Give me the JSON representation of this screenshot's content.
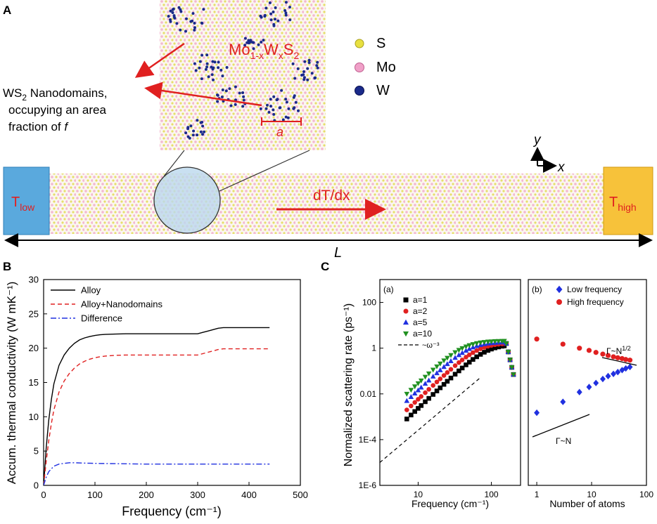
{
  "panels": {
    "A": "A",
    "B": "B",
    "C": "C"
  },
  "panel_a": {
    "material_main": "Mo",
    "material_sub1": "1-x",
    "material_w": "W",
    "material_sub2": "x",
    "material_s": "S",
    "material_sub3": "2",
    "nanodomain_line1_pre": "WS",
    "nanodomain_line1_sub": "2",
    "nanodomain_line1_post": " Nanodomains,",
    "nanodomain_line2": "occupying an area",
    "nanodomain_line3_pre": "fraction of ",
    "nanodomain_line3_var": "f",
    "domain_size": "a",
    "legend": [
      {
        "label": "S",
        "color": "#e8e040"
      },
      {
        "label": "Mo",
        "color": "#f0a0c8"
      },
      {
        "label": "W",
        "color": "#1a2a8a"
      }
    ],
    "axis_y": "y",
    "axis_x": "x",
    "t_low_main": "T",
    "t_low_sub": "low",
    "t_high_main": "T",
    "t_high_sub": "high",
    "gradient": "dT/dx",
    "length": "L",
    "colors": {
      "cold": "#5aa9dd",
      "hot": "#f7c23a",
      "arrow": "#e02020"
    }
  },
  "chart_data": [
    {
      "type": "line",
      "title": "",
      "xlabel": "Frequency (cm⁻¹)",
      "ylabel": "Accum. thermal conductivity (W mK⁻¹)",
      "xlim": [
        0,
        500
      ],
      "ylim": [
        0,
        30
      ],
      "xticks": [
        0,
        100,
        200,
        300,
        400,
        500
      ],
      "yticks": [
        0,
        5,
        10,
        15,
        20,
        25,
        30
      ],
      "series": [
        {
          "name": "Alloy",
          "color": "#000000",
          "dash": "",
          "x": [
            0,
            5,
            10,
            15,
            20,
            30,
            40,
            50,
            60,
            70,
            80,
            90,
            100,
            110,
            120,
            140,
            160,
            200,
            250,
            300,
            310,
            320,
            330,
            340,
            350,
            400,
            440
          ],
          "y": [
            0,
            5.5,
            9.5,
            12.5,
            14.8,
            17.5,
            19.0,
            20.0,
            20.7,
            21.2,
            21.5,
            21.7,
            21.85,
            21.95,
            22.0,
            22.05,
            22.1,
            22.1,
            22.1,
            22.1,
            22.3,
            22.5,
            22.7,
            22.9,
            23.0,
            23.0,
            23.0
          ]
        },
        {
          "name": "Alloy+Nanodomains",
          "color": "#e02020",
          "dash": "6,4",
          "x": [
            0,
            5,
            10,
            15,
            20,
            30,
            40,
            50,
            60,
            70,
            80,
            90,
            100,
            110,
            120,
            140,
            160,
            200,
            250,
            300,
            310,
            320,
            330,
            340,
            350,
            400,
            440
          ],
          "y": [
            0,
            3.5,
            6.5,
            9.0,
            11.0,
            13.6,
            15.2,
            16.3,
            17.1,
            17.7,
            18.1,
            18.4,
            18.6,
            18.75,
            18.85,
            18.95,
            19.0,
            19.0,
            19.0,
            19.0,
            19.2,
            19.4,
            19.6,
            19.8,
            19.9,
            19.9,
            19.9
          ]
        },
        {
          "name": "Difference",
          "color": "#2030e0",
          "dash": "8,3,2,3",
          "x": [
            0,
            5,
            10,
            20,
            30,
            40,
            50,
            60,
            80,
            100,
            150,
            200,
            300,
            400,
            440
          ],
          "y": [
            0,
            1.2,
            2.0,
            2.8,
            3.1,
            3.2,
            3.3,
            3.3,
            3.25,
            3.2,
            3.15,
            3.1,
            3.1,
            3.1,
            3.1
          ]
        }
      ]
    },
    {
      "type": "scatter",
      "subtitle": "(a)",
      "xlabel": "Frequency (cm⁻¹)",
      "ylabel": "Normalized scattering rate (ps⁻¹)",
      "xscale": "log",
      "yscale": "log",
      "xlim": [
        3,
        250
      ],
      "ylim": [
        1e-06,
        1000
      ],
      "xticks": [
        10,
        100
      ],
      "xticklabels": [
        "10",
        "100"
      ],
      "yticks": [
        1e-06,
        0.0001,
        0.01,
        1,
        100
      ],
      "yticklabels": [
        "1E-6",
        "1E-4",
        "0.01",
        "1",
        "100"
      ],
      "series": [
        {
          "name": "a=1",
          "marker": "square",
          "color": "#000000",
          "kappa": 0.0008,
          "n": 0.0008
        },
        {
          "name": "a=2",
          "marker": "circle",
          "color": "#e02020",
          "kappa": 0.002,
          "n": 0.0022
        },
        {
          "name": "a=5",
          "marker": "triangle-up",
          "color": "#2030e0",
          "kappa": 0.005,
          "n": 0.005
        },
        {
          "name": "a=10",
          "marker": "triangle-down",
          "color": "#209020",
          "kappa": 0.01,
          "n": 0.012
        }
      ],
      "x_points": [
        7,
        8,
        9,
        10,
        11,
        12.5,
        14,
        16,
        18,
        20,
        22.5,
        25,
        28,
        32,
        36,
        40,
        45,
        50,
        56,
        63,
        71,
        80,
        90,
        100,
        112,
        125,
        140,
        150,
        160,
        170,
        180,
        190,
        200
      ],
      "guide": {
        "name": "~ω⁻³",
        "x": [
          3,
          70
        ],
        "y": [
          1e-05,
          0.05
        ]
      }
    },
    {
      "type": "scatter",
      "subtitle": "(b)",
      "xlabel": "Number of atoms",
      "xscale": "log",
      "yscale": "log",
      "xlim": [
        0.7,
        100
      ],
      "xticks": [
        1,
        10,
        100
      ],
      "xticklabels": [
        "1",
        "10",
        "100"
      ],
      "series": [
        {
          "name": "Low frequency",
          "marker": "diamond",
          "color": "#2030e0",
          "x": [
            1,
            3,
            6,
            9,
            12,
            16,
            20,
            25,
            30,
            36,
            42,
            50
          ],
          "y": [
            0.0015,
            0.0045,
            0.012,
            0.02,
            0.03,
            0.045,
            0.06,
            0.075,
            0.09,
            0.11,
            0.13,
            0.15
          ]
        },
        {
          "name": "High frequency",
          "marker": "circle",
          "color": "#e02020",
          "x": [
            1,
            3,
            6,
            9,
            12,
            16,
            20,
            25,
            30,
            36,
            42,
            50
          ],
          "y": [
            2.5,
            1.5,
            1.0,
            0.8,
            0.65,
            0.55,
            0.48,
            0.42,
            0.38,
            0.35,
            0.32,
            0.3
          ]
        }
      ],
      "annotations": [
        {
          "text_main": "Γ~N",
          "text_sup": "1/2"
        },
        {
          "text_main": "Γ~N",
          "text_sup": ""
        }
      ]
    }
  ]
}
